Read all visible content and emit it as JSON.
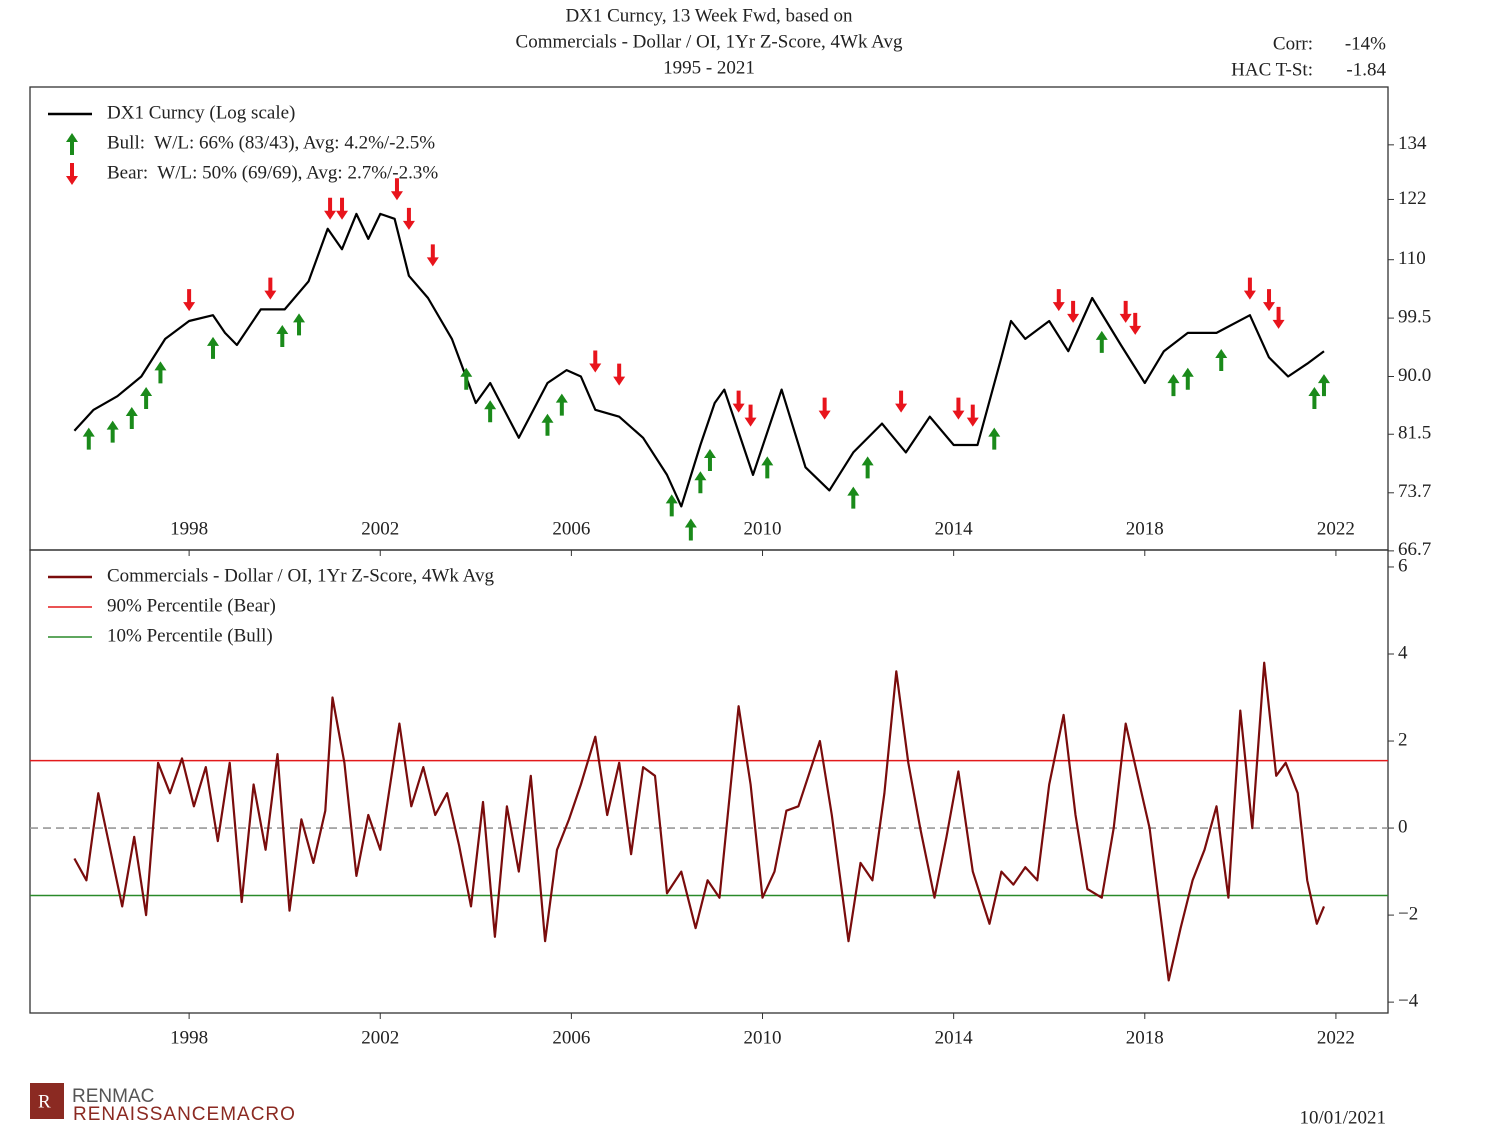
{
  "stats": [
    {
      "label": "Corr:",
      "value": "-14%"
    },
    {
      "label": "HAC T-St:",
      "value": "-1.84"
    }
  ],
  "logo": {
    "name": "RENMAC",
    "tagline": "RENAISSANCEMACRO"
  },
  "date": "10/01/2021",
  "chart_data": [
    {
      "type": "line",
      "title": [
        "DX1 Curncy, 13 Week Fwd, based on",
        "Commercials - Dollar / OI, 1Yr Z-Score, 4Wk Avg",
        "1995 - 2021"
      ],
      "log_scale": true,
      "xlim": [
        1994.67,
        2023.09
      ],
      "ylim": [
        66.8,
        148
      ],
      "xticks": [
        1998,
        2002,
        2006,
        2010,
        2014,
        2018,
        2022
      ],
      "yticks": [
        134,
        122,
        110,
        99.5,
        {
          "value": 90,
          "label": "90.0"
        },
        81.5,
        73.7,
        66.7
      ],
      "series": [
        {
          "name": "DX1 Curncy (Log scale)",
          "color": "#000000",
          "x": [
            1995.6,
            1996.0,
            1996.5,
            1997.0,
            1997.5,
            1998.0,
            1998.5,
            1998.75,
            1999.0,
            1999.5,
            2000.0,
            2000.5,
            2000.9,
            2001.2,
            2001.5,
            2001.75,
            2002.0,
            2002.3,
            2002.6,
            2003.0,
            2003.5,
            2004.0,
            2004.3,
            2004.9,
            2005.5,
            2005.9,
            2006.2,
            2006.5,
            2007.0,
            2007.5,
            2008.0,
            2008.3,
            2008.7,
            2009.0,
            2009.2,
            2009.8,
            2010.4,
            2010.9,
            2011.4,
            2011.9,
            2012.5,
            2013.0,
            2013.5,
            2014.0,
            2014.5,
            2015.0,
            2015.2,
            2015.5,
            2016.0,
            2016.4,
            2016.9,
            2017.5,
            2018.0,
            2018.4,
            2018.9,
            2019.5,
            2020.2,
            2020.6,
            2021.0,
            2021.4,
            2021.75
          ],
          "values": [
            82,
            85,
            87,
            90,
            96,
            99,
            100,
            97,
            95,
            101,
            101,
            106,
            116,
            112,
            119,
            114,
            119,
            118,
            107,
            103,
            96,
            86,
            89,
            81,
            89,
            91,
            90,
            85,
            84,
            81,
            76,
            72,
            80,
            86,
            88,
            76,
            88,
            77,
            74,
            79,
            83,
            79,
            84,
            80,
            80,
            93,
            99,
            96,
            99,
            94,
            103,
            95,
            89,
            94,
            97,
            97,
            100,
            93,
            90,
            92,
            94
          ]
        }
      ],
      "signals": [
        {
          "name": "Bull:  W/L: 66% (83/43), Avg: 4.2%/-2.5%",
          "color": "#1a8a1a",
          "direction": "up",
          "x": [
            1995.9,
            1996.4,
            1996.8,
            1997.1,
            1997.4,
            1998.5,
            1999.95,
            2000.3,
            2003.8,
            2004.3,
            2005.5,
            2005.8,
            2008.1,
            2008.5,
            2008.7,
            2008.9,
            2010.1,
            2011.9,
            2012.2,
            2014.85,
            2017.1,
            2018.6,
            2018.9,
            2019.6,
            2021.55,
            2021.75
          ],
          "values": [
            83,
            84,
            86,
            89,
            93,
            97,
            99,
            101,
            92,
            87,
            85,
            88,
            74,
            71,
            77,
            80,
            79,
            75,
            79,
            83,
            98,
            91,
            92,
            95,
            89,
            91
          ]
        },
        {
          "name": "Bear:  W/L: 50% (69/69), Avg: 2.7%/-2.3%",
          "color": "#e8141c",
          "direction": "down",
          "x": [
            1998.0,
            1999.7,
            2000.95,
            2001.2,
            2002.35,
            2002.6,
            2003.1,
            2006.5,
            2007.0,
            2009.5,
            2009.75,
            2011.3,
            2012.9,
            2014.1,
            2014.4,
            2016.2,
            2016.5,
            2017.6,
            2017.8,
            2020.2,
            2020.6,
            2020.8
          ],
          "values": [
            100,
            102,
            117,
            117,
            121,
            115,
            108,
            90,
            88,
            84,
            82,
            83,
            84,
            83,
            82,
            100,
            98,
            98,
            96,
            102,
            100,
            97
          ]
        }
      ]
    },
    {
      "type": "line",
      "xlim": [
        1994.67,
        2023.09
      ],
      "ylim": [
        -4.25,
        6.39
      ],
      "xticks": [
        1998,
        2002,
        2006,
        2010,
        2014,
        2018,
        2022
      ],
      "yticks": [
        6,
        4,
        2,
        0,
        {
          "value": -2,
          "label": "−2"
        },
        {
          "value": -4,
          "label": "−4"
        }
      ],
      "series": [
        {
          "name": "Commercials - Dollar / OI, 1Yr Z-Score, 4Wk Avg",
          "color": "#7a0c0c",
          "x": [
            1995.6,
            1995.85,
            1996.1,
            1996.35,
            1996.6,
            1996.85,
            1997.1,
            1997.35,
            1997.6,
            1997.85,
            1998.1,
            1998.35,
            1998.6,
            1998.85,
            1999.1,
            1999.35,
            1999.6,
            1999.85,
            2000.1,
            2000.35,
            2000.6,
            2000.85,
            2001.0,
            2001.25,
            2001.5,
            2001.75,
            2002.0,
            2002.4,
            2002.65,
            2002.9,
            2003.15,
            2003.4,
            2003.65,
            2003.9,
            2004.15,
            2004.4,
            2004.65,
            2004.9,
            2005.15,
            2005.45,
            2005.7,
            2005.95,
            2006.2,
            2006.5,
            2006.75,
            2007.0,
            2007.25,
            2007.5,
            2007.75,
            2008.0,
            2008.3,
            2008.6,
            2008.85,
            2009.1,
            2009.5,
            2009.75,
            2010.0,
            2010.25,
            2010.5,
            2010.75,
            2011.2,
            2011.45,
            2011.8,
            2012.05,
            2012.3,
            2012.55,
            2012.8,
            2013.05,
            2013.3,
            2013.6,
            2013.85,
            2014.1,
            2014.4,
            2014.75,
            2015.0,
            2015.25,
            2015.5,
            2015.75,
            2016.0,
            2016.3,
            2016.55,
            2016.8,
            2017.1,
            2017.35,
            2017.6,
            2017.85,
            2018.1,
            2018.5,
            2018.75,
            2019.0,
            2019.25,
            2019.5,
            2019.75,
            2020.0,
            2020.25,
            2020.5,
            2020.75,
            2020.95,
            2021.2,
            2021.4,
            2021.6,
            2021.75
          ],
          "values": [
            -0.7,
            -1.2,
            0.8,
            -0.5,
            -1.8,
            -0.2,
            -2.0,
            1.5,
            0.8,
            1.6,
            0.5,
            1.4,
            -0.3,
            1.5,
            -1.7,
            1.0,
            -0.5,
            1.7,
            -1.9,
            0.2,
            -0.8,
            0.4,
            3.0,
            1.5,
            -1.1,
            0.3,
            -0.5,
            2.4,
            0.5,
            1.4,
            0.3,
            0.8,
            -0.4,
            -1.8,
            0.6,
            -2.5,
            0.5,
            -1.0,
            1.2,
            -2.6,
            -0.5,
            0.2,
            1.0,
            2.1,
            0.3,
            1.5,
            -0.6,
            1.4,
            1.2,
            -1.5,
            -1.0,
            -2.3,
            -1.2,
            -1.6,
            2.8,
            1.0,
            -1.6,
            -1.0,
            0.4,
            0.5,
            2.0,
            0.3,
            -2.6,
            -0.8,
            -1.2,
            0.8,
            3.6,
            1.5,
            0.0,
            -1.6,
            -0.2,
            1.3,
            -1.0,
            -2.2,
            -1.0,
            -1.3,
            -0.9,
            -1.2,
            1.0,
            2.6,
            0.3,
            -1.4,
            -1.6,
            0.0,
            2.4,
            1.2,
            0.0,
            -3.5,
            -2.3,
            -1.2,
            -0.5,
            0.5,
            -1.6,
            2.7,
            0.0,
            3.8,
            1.2,
            1.5,
            0.8,
            -1.2,
            -2.2,
            -1.8
          ]
        }
      ],
      "hlines": [
        {
          "name": "90% Percentile (Bear)",
          "color": "#e31a1c",
          "value": 1.55
        },
        {
          "name": "10% Percentile (Bull)",
          "color": "#2a8a2a",
          "value": -1.55
        },
        {
          "color": "#999999",
          "value": 0,
          "dashed": true
        }
      ]
    }
  ]
}
